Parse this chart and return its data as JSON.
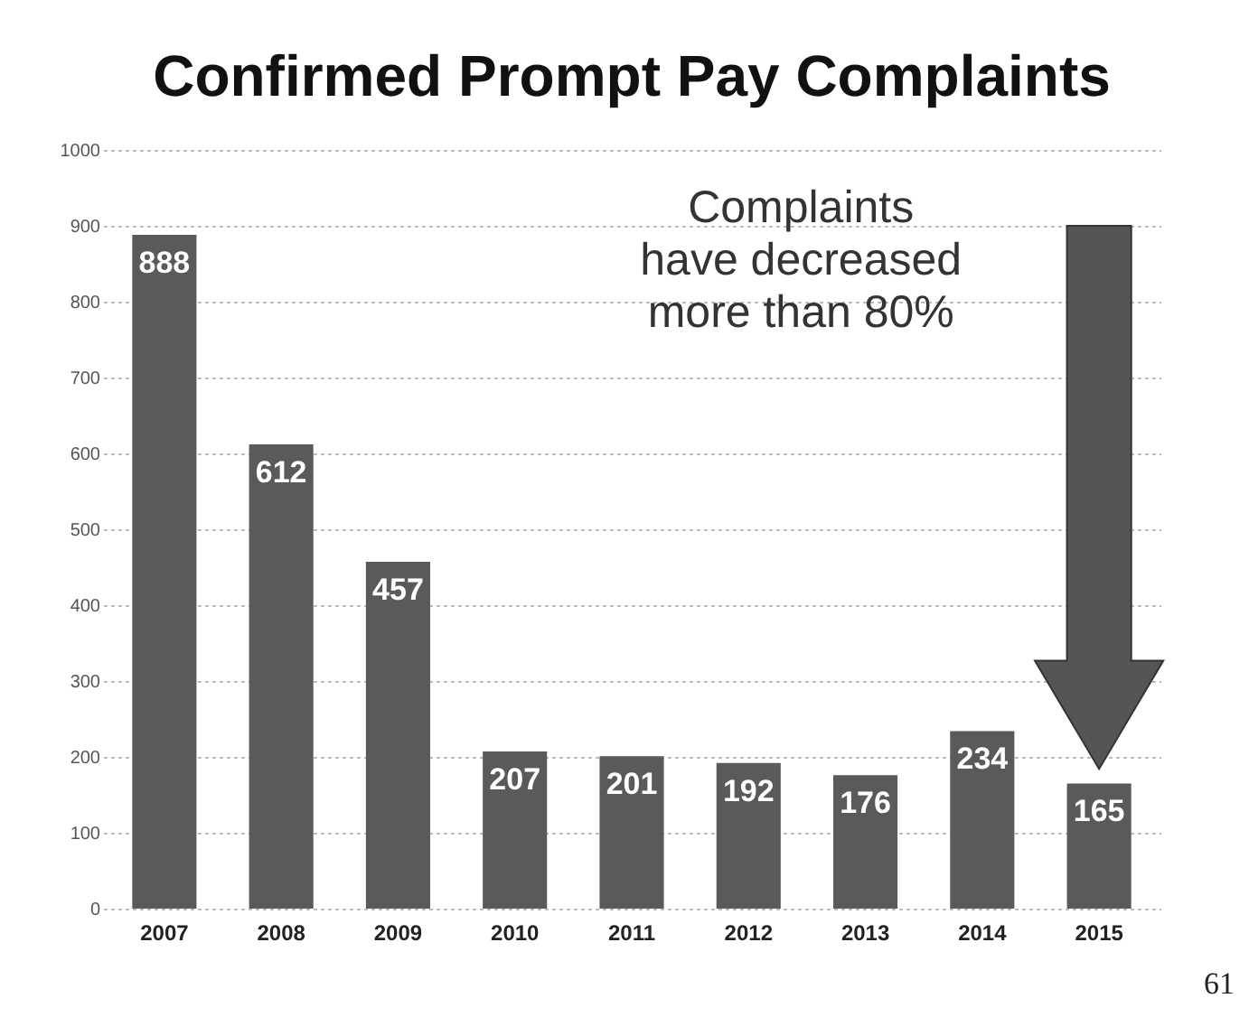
{
  "chart_data": {
    "type": "bar",
    "title": "Confirmed Prompt Pay Complaints",
    "categories": [
      "2007",
      "2008",
      "2009",
      "2010",
      "2011",
      "2012",
      "2013",
      "2014",
      "2015"
    ],
    "values": [
      888,
      612,
      457,
      207,
      201,
      192,
      176,
      234,
      165
    ],
    "color": "#5a5a5a",
    "ylim": [
      0,
      1000
    ],
    "yticks": [
      0,
      100,
      200,
      300,
      400,
      500,
      600,
      700,
      800,
      900,
      1000
    ],
    "grid": "y",
    "data_labels": true,
    "annotations": [
      "Complaints\nhave decreased\nmore than 80%",
      "61"
    ]
  }
}
